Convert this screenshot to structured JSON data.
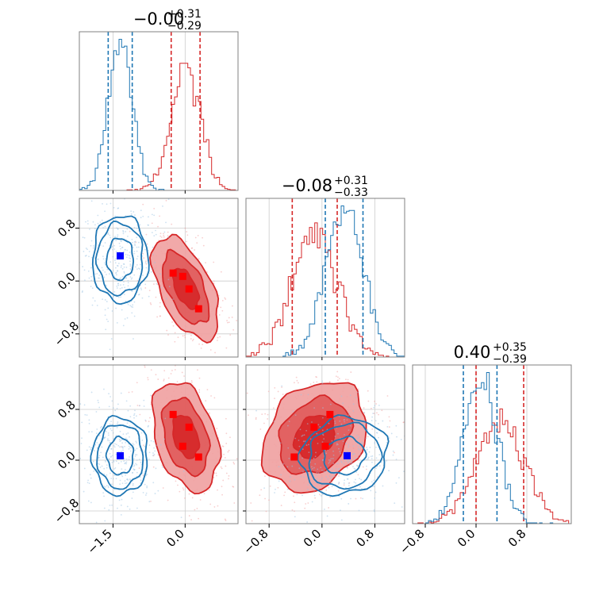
{
  "chart_data": {
    "type": "corner",
    "colors": {
      "red": "#d62728",
      "blue": "#1f77b4",
      "marker_blue": "#0000ff",
      "marker_red": "#ff0000"
    },
    "grid": true,
    "series": [
      {
        "color": "red",
        "param_stats": [
          {
            "p16": -0.29,
            "p84": 0.31
          },
          {
            "p16": -0.45,
            "p84": 0.23
          },
          {
            "p16": 0.0,
            "p84": 0.75
          }
        ]
      },
      {
        "color": "blue",
        "param_stats": [
          {
            "p16": -1.6,
            "p84": -1.1
          },
          {
            "p16": 0.05,
            "p84": 0.62
          },
          {
            "p16": -0.2,
            "p84": 0.33
          }
        ]
      }
    ],
    "titles": [
      {
        "main": "−0.00",
        "plus": "+0.31",
        "minus": "−0.29"
      },
      {
        "main": "−0.08",
        "plus": "+0.31",
        "minus": "−0.33"
      },
      {
        "main": "0.40",
        "plus": "+0.35",
        "minus": "−0.39"
      }
    ],
    "ranges": [
      [
        -2.2,
        1.1
      ],
      [
        -1.15,
        1.25
      ],
      [
        -1.0,
        1.5
      ]
    ],
    "x_ticks": {
      "p0": [
        "−1.5",
        "0.0"
      ],
      "p1": [
        "−0.8",
        "0.0",
        "0.8"
      ],
      "p2": [
        "−0.8",
        "0.0",
        "0.8"
      ]
    },
    "y_ticks": {
      "p1": [
        "0.8",
        "0.0",
        "−0.8"
      ],
      "p2": [
        "0.8",
        "0.0",
        "−0.8"
      ]
    },
    "tick_values": {
      "p0": [
        -1.5,
        0.0
      ],
      "p1": [
        -0.8,
        0.0,
        0.8
      ],
      "p2": [
        -0.8,
        0.0,
        0.8
      ]
    },
    "markers": {
      "blue": [
        {
          "panel": "1-0",
          "x": -1.35,
          "y": 0.38
        },
        {
          "panel": "2-0",
          "x": -1.35,
          "y": 0.07
        },
        {
          "panel": "2-1",
          "x": 0.38,
          "y": 0.07
        }
      ],
      "red": [
        {
          "panel": "1-0",
          "x": -0.25,
          "y": 0.12
        },
        {
          "panel": "1-0",
          "x": -0.05,
          "y": 0.07
        },
        {
          "panel": "1-0",
          "x": 0.08,
          "y": -0.12
        },
        {
          "panel": "1-0",
          "x": 0.28,
          "y": -0.42
        },
        {
          "panel": "2-0",
          "x": -0.25,
          "y": 0.72
        },
        {
          "panel": "2-0",
          "x": 0.08,
          "y": 0.52
        },
        {
          "panel": "2-0",
          "x": -0.05,
          "y": 0.22
        },
        {
          "panel": "2-0",
          "x": 0.28,
          "y": 0.05
        },
        {
          "panel": "2-1",
          "x": -0.42,
          "y": 0.05
        },
        {
          "panel": "2-1",
          "x": -0.12,
          "y": 0.52
        },
        {
          "panel": "2-1",
          "x": 0.05,
          "y": 0.22
        },
        {
          "panel": "2-1",
          "x": 0.12,
          "y": 0.72
        }
      ]
    }
  }
}
